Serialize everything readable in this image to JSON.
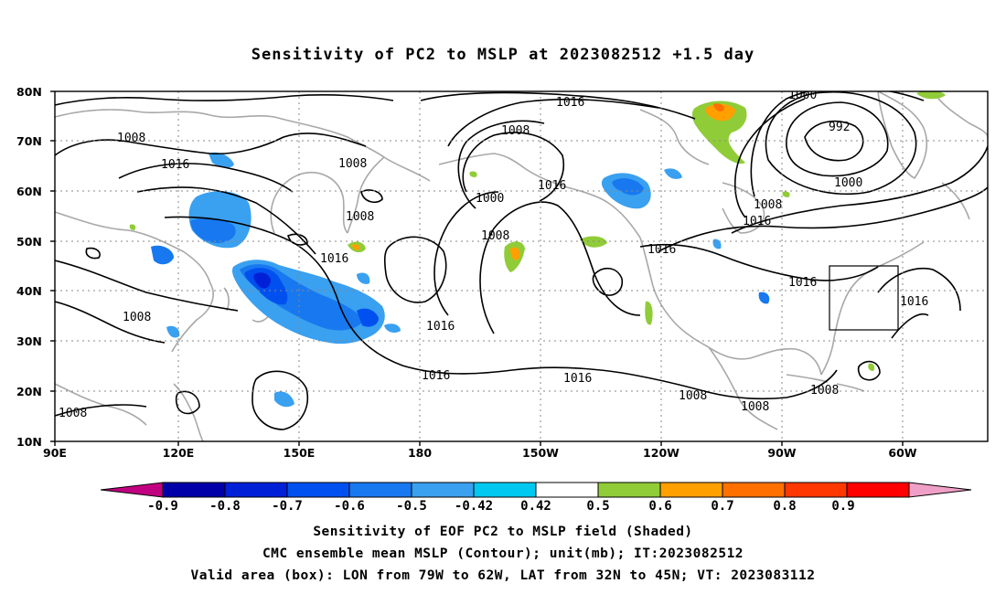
{
  "title": "Sensitivity of PC2 to MSLP at 2023082512 +1.5 day",
  "lat_labels": [
    "80N",
    "70N",
    "60N",
    "50N",
    "40N",
    "30N",
    "20N",
    "10N"
  ],
  "lon_labels": [
    "90E",
    "120E",
    "150E",
    "180",
    "150W",
    "120W",
    "90W",
    "60W"
  ],
  "contour_labels": [
    "1016",
    "1000",
    "1008",
    "992",
    "1016",
    "1000",
    "1008",
    "1008",
    "1016",
    "1008",
    "1000",
    "1008",
    "1016",
    "1008",
    "1016",
    "1016",
    "1016",
    "1016",
    "1016",
    "1016",
    "1016",
    "1008",
    "1008",
    "1008",
    "1008",
    "1008",
    "1016"
  ],
  "colorbar": {
    "tick_labels": [
      "-0.9",
      "-0.8",
      "-0.7",
      "-0.6",
      "-0.5",
      "-0.42",
      "0.42",
      "0.5",
      "0.6",
      "0.7",
      "0.8",
      "0.9"
    ],
    "colors": [
      "#c00080",
      "#0000a8",
      "#0020d8",
      "#0050f0",
      "#1878f0",
      "#3aa0f0",
      "#00c8f0",
      "#ffffff",
      "#90cc38",
      "#ffa000",
      "#ff7000",
      "#ff3800",
      "#ff0000",
      "#f0a0c8"
    ]
  },
  "captions": [
    "Sensitivity of EOF PC2 to MSLP field (Shaded)",
    "CMC ensemble mean MSLP (Contour); unit(mb); IT:2023082512",
    "Valid area (box): LON from 79W to 62W, LAT from 32N to 45N; VT: 2023083112"
  ]
}
